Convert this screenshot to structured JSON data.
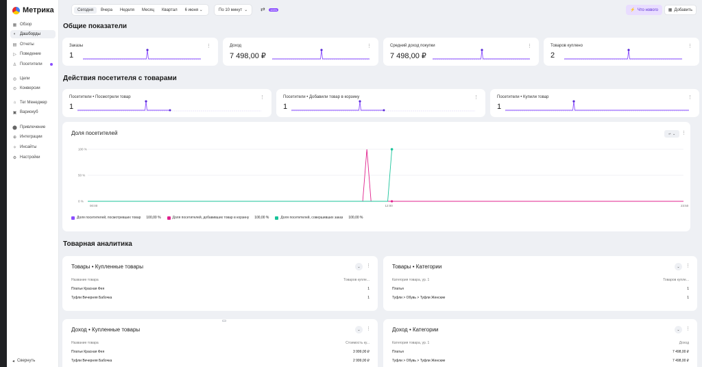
{
  "app": {
    "logo": "Метрика"
  },
  "sidebar": {
    "items": [
      {
        "label": "Обзор",
        "icon": "grid-icon",
        "glyph": "▦"
      },
      {
        "label": "Дашборды",
        "icon": "dashboard-icon",
        "glyph": "◐"
      },
      {
        "label": "Отчеты",
        "icon": "reports-icon",
        "glyph": "▤"
      },
      {
        "label": "Поведение",
        "icon": "play-icon",
        "glyph": "▷"
      },
      {
        "label": "Посетители",
        "icon": "user-icon",
        "glyph": "♙"
      },
      {
        "label": "Цели",
        "icon": "target-icon",
        "glyph": "◎"
      },
      {
        "label": "Конверсии",
        "icon": "funnel-icon",
        "glyph": "⊙"
      },
      {
        "label": "Тег Менеджер",
        "icon": "tag-icon",
        "glyph": "⌂"
      },
      {
        "label": "Вариокуб",
        "icon": "cube-icon",
        "glyph": "▣"
      },
      {
        "label": "Привлечение",
        "icon": "traffic-icon",
        "glyph": "⬤"
      },
      {
        "label": "Интеграции",
        "icon": "puzzle-icon",
        "glyph": "⊕"
      },
      {
        "label": "Инсайты",
        "icon": "sparkle-icon",
        "glyph": "✧"
      },
      {
        "label": "Настройки",
        "icon": "gear-icon",
        "glyph": "⚙"
      }
    ],
    "collapse_label": "Свернуть"
  },
  "topbar": {
    "periods": [
      "Сегодня",
      "Вчера",
      "Неделя",
      "Месяц",
      "Квартал"
    ],
    "date": "6 июня",
    "granularity": "По 10 минут",
    "badge": "100%",
    "whatsnew": "Что нового",
    "add": "Добавить"
  },
  "sections": {
    "general": "Общие показатели",
    "actions": "Действия посетителя с товарами",
    "analytics": "Товарная аналитика"
  },
  "kpis": [
    {
      "label": "Заказы",
      "value": "1"
    },
    {
      "label": "Доход",
      "value": "7 498,00 ₽"
    },
    {
      "label": "Средний доход покупки",
      "value": "7 498,00 ₽"
    },
    {
      "label": "Товаров куплено",
      "value": "2"
    }
  ],
  "actions_kpis": [
    {
      "label": "Посетители • Посмотрели товар",
      "value": "1"
    },
    {
      "label": "Посетители • Добавили товар в корзину",
      "value": "1"
    },
    {
      "label": "Посетители • Купили товар",
      "value": "1"
    }
  ],
  "share_chart": {
    "title": "Доля посетителей",
    "legend": [
      {
        "label": "Доля посетителей, посмотревших товар",
        "value": "100,00 %",
        "color": "#8a4dff"
      },
      {
        "label": "Доля посетителей, добавивших товар в корзину",
        "value": "100,00 %",
        "color": "#e0208c"
      },
      {
        "label": "Доля посетителей, совершивших заказ",
        "value": "100,00 %",
        "color": "#19c39a"
      }
    ]
  },
  "chart_data": {
    "type": "line",
    "title": "Доля посетителей",
    "x_ticks": [
      "00:00",
      "12:00",
      "23:50"
    ],
    "y_ticks": [
      "0 %",
      "50 %",
      "100 %"
    ],
    "ylim": [
      0,
      100
    ],
    "series": [
      {
        "name": "Доля посетителей, посмотревших товар",
        "color": "#8a4dff",
        "points": [
          [
            0,
            0
          ],
          [
            1430,
            0
          ]
        ]
      },
      {
        "name": "Доля посетителей, добавивших товар в корзину",
        "color": "#e0208c",
        "points": [
          [
            0,
            0
          ],
          [
            660,
            0
          ],
          [
            670,
            100
          ],
          [
            680,
            0
          ],
          [
            1430,
            0
          ]
        ]
      },
      {
        "name": "Доля посетителей, совершивших заказ",
        "color": "#19c39a",
        "points": [
          [
            0,
            0
          ],
          [
            720,
            0
          ],
          [
            730,
            100
          ]
        ]
      }
    ]
  },
  "tables": [
    {
      "title": "Товары • Купленные товары",
      "col1": "Название товара",
      "col2": "Товаров купле...",
      "rows": [
        [
          "Платье Красная Фея",
          "1"
        ],
        [
          "Туфли Вечерняя Бабочка",
          "1"
        ]
      ]
    },
    {
      "title": "Товары • Категории",
      "col1": "Категория товара, ур. 1",
      "col2": "Товаров купле...",
      "rows": [
        [
          "Платья",
          "1"
        ],
        [
          "Туфли > Обувь > Туфли Женские",
          "1"
        ]
      ]
    },
    {
      "title": "Доход • Купленные товары",
      "col1": "Название товара",
      "col2": "Стоимость ку...",
      "rows": [
        [
          "Платье Красная Фея",
          "3 999,00 ₽"
        ],
        [
          "Туфли Вечерняя Бабочка",
          "2 999,00 ₽"
        ]
      ]
    },
    {
      "title": "Доход • Категории",
      "col1": "Категория товара, ур. 1",
      "col2": "Доход",
      "rows": [
        [
          "Платья",
          "7 498,00 ₽"
        ],
        [
          "Туфли > Обувь > Туфли Женские",
          "7 498,00 ₽"
        ]
      ]
    }
  ]
}
